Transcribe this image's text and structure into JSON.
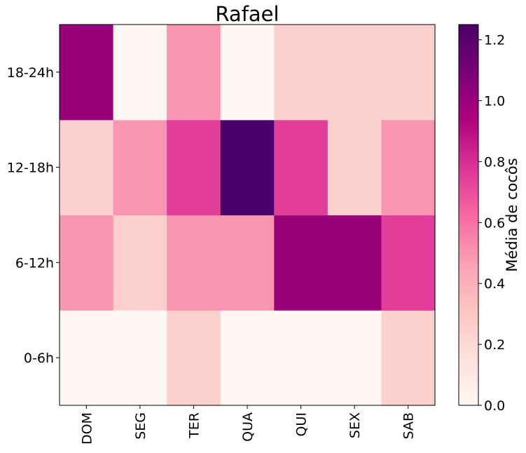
{
  "chart_data": {
    "type": "heatmap",
    "title": "Rafael",
    "x_categories": [
      "DOM",
      "SEG",
      "TER",
      "QUA",
      "QUI",
      "SEX",
      "SAB"
    ],
    "y_categories": [
      "0-6h",
      "6-12h",
      "12-18h",
      "18-24h"
    ],
    "values": [
      [
        0.0,
        0.0,
        0.25,
        0.0,
        0.0,
        0.0,
        0.25
      ],
      [
        0.5,
        0.25,
        0.5,
        0.5,
        1.0,
        1.0,
        0.75
      ],
      [
        0.25,
        0.5,
        0.75,
        1.25,
        0.75,
        0.25,
        0.5
      ],
      [
        1.0,
        0.0,
        0.5,
        0.0,
        0.25,
        0.25,
        0.25
      ]
    ],
    "colorbar": {
      "label": "Média de cocôs",
      "min": 0.0,
      "max": 1.25,
      "ticks": [
        0.0,
        0.2,
        0.4,
        0.6,
        0.8,
        1.0,
        1.2
      ],
      "tick_labels": [
        "0.0",
        "0.2",
        "0.4",
        "0.6",
        "0.8",
        "1.0",
        "1.2"
      ],
      "colormap": "RdPu",
      "colormap_stops": [
        "#fff7f3",
        "#fde0dd",
        "#fcc5c0",
        "#fa9fb5",
        "#f768a1",
        "#dd3497",
        "#ae017e",
        "#7a0177",
        "#49006a"
      ]
    },
    "grid": false
  }
}
